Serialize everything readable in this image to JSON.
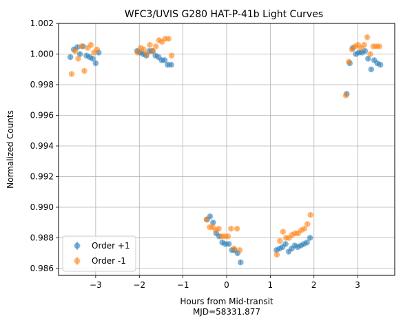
{
  "chart_data": {
    "type": "scatter",
    "title": "WFC3/UVIS G280 HAT-P-41b Light Curves",
    "xlabel": "Hours from Mid-transit",
    "xlabel_line2": "MJD=58331.877",
    "ylabel": "Normalized Counts",
    "xlim": [
      -3.85,
      3.85
    ],
    "ylim": [
      0.98555,
      1.002
    ],
    "xticks": [
      -3,
      -2,
      -1,
      0,
      1,
      2,
      3
    ],
    "xtick_labels": [
      "−3",
      "−2",
      "−1",
      "0",
      "1",
      "2",
      "3"
    ],
    "yticks": [
      0.986,
      0.988,
      0.99,
      0.992,
      0.994,
      0.996,
      0.998,
      1.0,
      1.002
    ],
    "ytick_labels": [
      "0.986",
      "0.988",
      "0.990",
      "0.992",
      "0.994",
      "0.996",
      "0.998",
      "1.000",
      "1.002"
    ],
    "grid": true,
    "legend_position": "lower-left",
    "series": [
      {
        "name": "Order +1",
        "color": "#1f77b4",
        "x": [
          -3.58,
          -3.5,
          -3.42,
          -3.36,
          -3.29,
          -3.21,
          -3.14,
          -3.07,
          -3.0,
          -2.93,
          -2.05,
          -1.98,
          -1.91,
          -1.84,
          -1.77,
          -1.7,
          -1.63,
          -1.56,
          -1.49,
          -1.42,
          -1.35,
          -1.27,
          -0.45,
          -0.38,
          -0.31,
          -0.24,
          -0.17,
          -0.1,
          -0.03,
          0.05,
          0.12,
          0.18,
          0.25,
          0.32,
          1.14,
          1.21,
          1.28,
          1.35,
          1.42,
          1.49,
          1.56,
          1.63,
          1.7,
          1.77,
          1.84,
          1.91,
          2.75,
          2.82,
          2.89,
          2.96,
          3.03,
          3.1,
          3.17,
          3.24,
          3.31,
          3.38,
          3.45,
          3.52
        ],
        "y": [
          0.9998,
          1.0003,
          1.00045,
          1.0,
          1.0005,
          0.9999,
          0.9998,
          0.9997,
          0.9994,
          1.0001,
          1.0002,
          1.0001,
          1.0,
          0.9999,
          1.0002,
          1.0002,
          0.9999,
          0.9998,
          0.9996,
          0.9996,
          0.9993,
          0.9993,
          0.9892,
          0.9894,
          0.989,
          0.9883,
          0.9881,
          0.9877,
          0.9876,
          0.9876,
          0.9872,
          0.9872,
          0.987,
          0.9864,
          0.9872,
          0.9873,
          0.9874,
          0.9876,
          0.9871,
          0.9873,
          0.9875,
          0.9874,
          0.9875,
          0.9876,
          0.9877,
          0.988,
          0.9974,
          0.9994,
          1.0004,
          1.0,
          1.0001,
          1.0001,
          1.0002,
          0.9997,
          0.999,
          0.9996,
          0.9994,
          0.9993
        ]
      },
      {
        "name": "Order -1",
        "color": "#ff7f0e",
        "x": [
          -3.55,
          -3.47,
          -3.4,
          -3.33,
          -3.26,
          -3.18,
          -3.11,
          -3.04,
          -2.97,
          -2.04,
          -1.97,
          -1.9,
          -1.83,
          -1.76,
          -1.69,
          -1.62,
          -1.55,
          -1.48,
          -1.41,
          -1.33,
          -1.26,
          -0.46,
          -0.39,
          -0.32,
          -0.25,
          -0.18,
          -0.11,
          -0.04,
          0.03,
          0.1,
          0.17,
          0.24,
          0.3,
          1.15,
          1.22,
          1.29,
          1.36,
          1.43,
          1.5,
          1.57,
          1.64,
          1.71,
          1.78,
          1.85,
          1.92,
          2.73,
          2.8,
          2.87,
          2.94,
          3.01,
          3.08,
          3.15,
          3.22,
          3.29,
          3.36,
          3.43,
          3.5
        ],
        "y": [
          0.9987,
          1.0002,
          0.9997,
          1.0005,
          0.9989,
          1.0004,
          1.0006,
          1.0001,
          1.0003,
          1.0001,
          1.0004,
          1.0003,
          1.0,
          1.0006,
          1.0002,
          1.0005,
          1.0009,
          1.0008,
          1.001,
          1.001,
          0.9999,
          0.9892,
          0.9887,
          0.9887,
          0.9885,
          0.9886,
          0.9881,
          0.9881,
          0.9881,
          0.9886,
          0.9873,
          0.9886,
          0.9872,
          0.9869,
          0.9878,
          0.9884,
          0.988,
          0.988,
          0.9882,
          0.9883,
          0.9883,
          0.9885,
          0.9886,
          0.9889,
          0.9895,
          0.9973,
          0.9995,
          1.0003,
          1.0005,
          1.0006,
          1.0004,
          1.0006,
          1.0011,
          1.0,
          1.0005,
          1.0005,
          1.0005
        ]
      }
    ]
  }
}
